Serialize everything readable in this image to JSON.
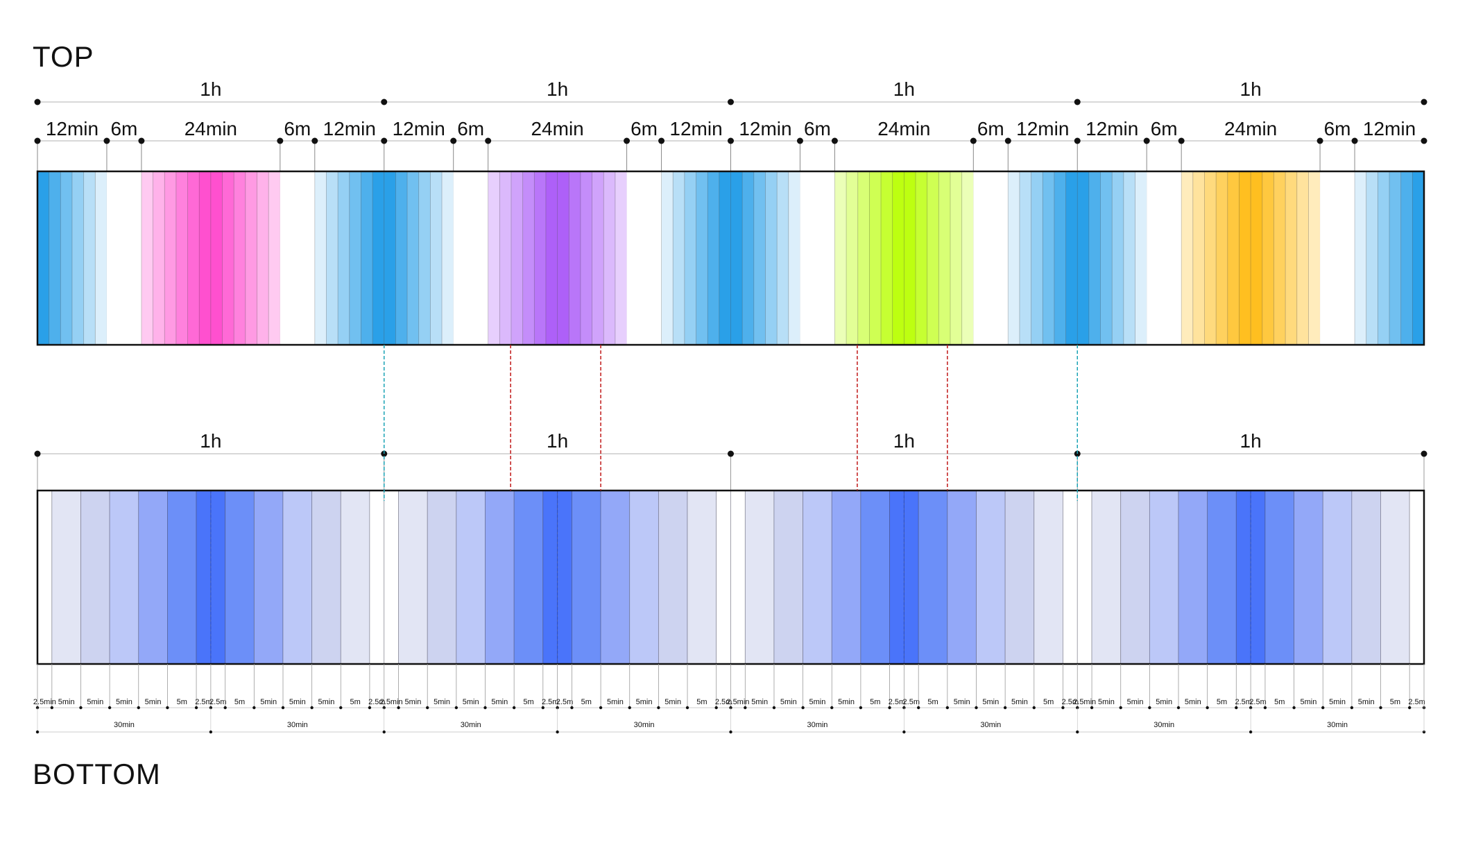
{
  "titles": {
    "top": "TOP",
    "bottom": "BOTTOM"
  },
  "hour_label": "1h",
  "top": {
    "segment_labels": [
      "12min",
      "6m",
      "24min",
      "6m",
      "12min"
    ],
    "segment_minutes": [
      12,
      6,
      24,
      6,
      12
    ],
    "bands_per_minute": 0.5,
    "hours": [
      {
        "blocks": [
          {
            "kind": "blue",
            "dir": "fade-out"
          },
          {
            "kind": "white"
          },
          {
            "kind": "gradient",
            "color": "#ff44cc"
          },
          {
            "kind": "white"
          },
          {
            "kind": "blue",
            "dir": "fade-in"
          }
        ]
      },
      {
        "blocks": [
          {
            "kind": "blue",
            "dir": "fade-out"
          },
          {
            "kind": "white"
          },
          {
            "kind": "gradient",
            "color": "#a855f7"
          },
          {
            "kind": "white"
          },
          {
            "kind": "blue",
            "dir": "fade-in"
          }
        ]
      },
      {
        "blocks": [
          {
            "kind": "blue",
            "dir": "fade-out"
          },
          {
            "kind": "white"
          },
          {
            "kind": "gradient",
            "color": "#b8ff00"
          },
          {
            "kind": "white"
          },
          {
            "kind": "blue",
            "dir": "fade-in"
          }
        ]
      },
      {
        "blocks": [
          {
            "kind": "blue",
            "dir": "fade-out"
          },
          {
            "kind": "white"
          },
          {
            "kind": "gradient",
            "color": "#ffbb10"
          },
          {
            "kind": "white"
          },
          {
            "kind": "blue",
            "dir": "fade-in"
          }
        ]
      }
    ]
  },
  "bottom": {
    "hour_count": 4,
    "segment_labels": [
      "2.5min",
      "5min",
      "5min",
      "5min",
      "5min",
      "5m",
      "2.5m",
      "2.5m",
      "5m",
      "5min",
      "5min",
      "5min",
      "5m",
      "2.5m"
    ],
    "segment_minutes": [
      2.5,
      5,
      5,
      5,
      5,
      5,
      2.5,
      2.5,
      5,
      5,
      5,
      5,
      5,
      2.5
    ],
    "segment_shades": [
      0,
      1,
      2,
      3,
      4,
      5,
      6,
      6,
      5,
      4,
      3,
      2,
      1,
      0
    ],
    "half_label": "30min",
    "half_minutes": [
      30,
      30
    ],
    "palette": [
      "#ffffff",
      "#e2e5f4",
      "#cdd3f0",
      "#bcc8f8",
      "#93a8f8",
      "#6c8ff8",
      "#4a74fa"
    ]
  },
  "colors": {
    "blue": "#2aa0e8",
    "teal_connector": "#1aa3b5",
    "red_connector": "#c01818",
    "tick": "#111111",
    "rule": "#cccccc"
  },
  "connectors": [
    {
      "minute": 60,
      "style": "teal"
    },
    {
      "minute": 81.9,
      "style": "red"
    },
    {
      "minute": 97.5,
      "style": "red"
    },
    {
      "minute": 141.9,
      "style": "red"
    },
    {
      "minute": 157.5,
      "style": "red"
    },
    {
      "minute": 180,
      "style": "teal"
    }
  ]
}
